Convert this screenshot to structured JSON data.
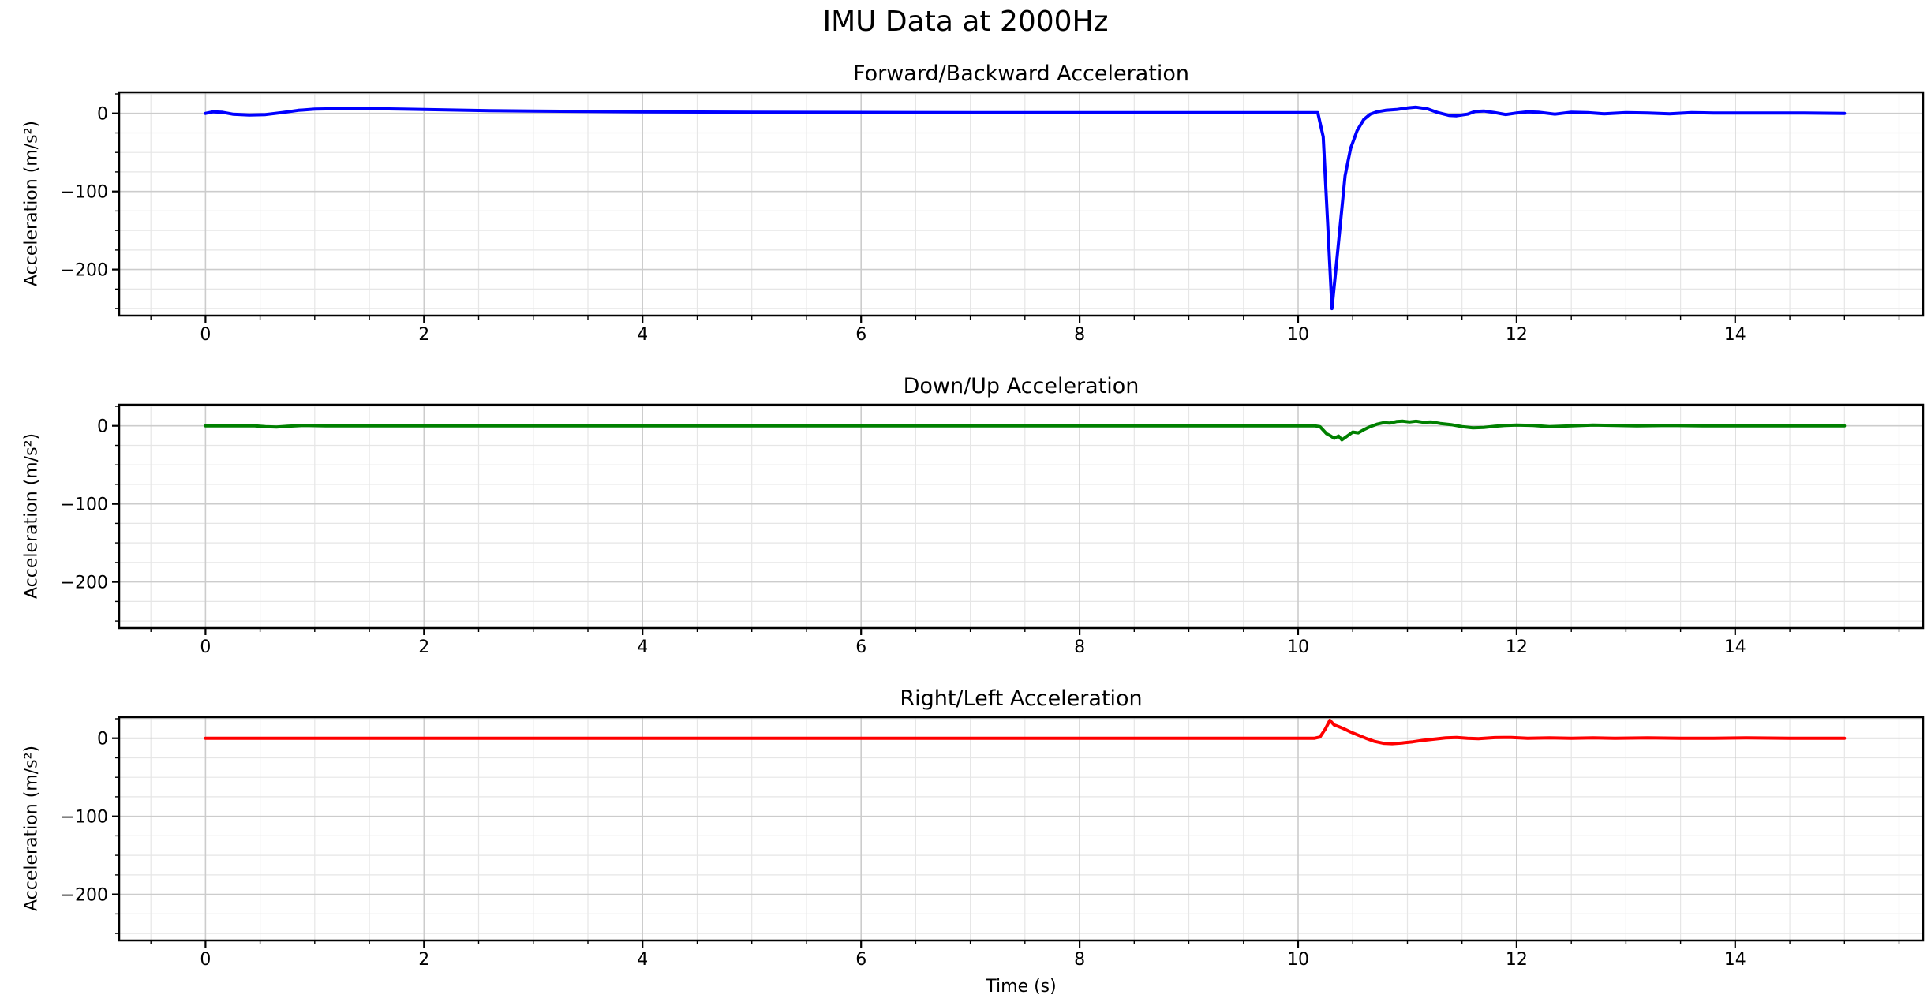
{
  "figure": {
    "suptitle": "IMU Data at 2000Hz",
    "background_color": "#ffffff",
    "text_color": "#000000",
    "grid_major_color": "#cccccc",
    "grid_minor_color": "#e6e6e6",
    "spine_color": "#000000"
  },
  "chart_data": [
    {
      "type": "line",
      "title": "Forward/Backward Acceleration",
      "xlabel": "",
      "ylabel": "Acceleration (m/s²)",
      "line_color": "#0000ff",
      "line_width": 4,
      "xlim": [
        -0.79,
        15.72
      ],
      "ylim": [
        -259,
        27
      ],
      "xticks": [
        0,
        2,
        4,
        6,
        8,
        10,
        12,
        14
      ],
      "xtick_labels": [
        "0",
        "2",
        "4",
        "6",
        "8",
        "10",
        "12",
        "14"
      ],
      "yticks": [
        0,
        -100,
        -200
      ],
      "ytick_labels": [
        "0",
        "−100",
        "−200"
      ],
      "minor_x_step": 0.5,
      "minor_y_step": 25,
      "grid": "both",
      "x": [
        0,
        0.07,
        0.15,
        0.25,
        0.4,
        0.55,
        0.7,
        0.85,
        1.0,
        1.2,
        1.5,
        1.8,
        2.2,
        2.6,
        3.0,
        3.5,
        4.0,
        5.0,
        6.0,
        7.0,
        8.0,
        9.0,
        10.0,
        10.18,
        10.23,
        10.27,
        10.31,
        10.36,
        10.43,
        10.48,
        10.54,
        10.6,
        10.66,
        10.72,
        10.8,
        10.9,
        11.0,
        11.08,
        11.18,
        11.28,
        11.38,
        11.45,
        11.55,
        11.62,
        11.7,
        11.8,
        11.9,
        12.0,
        12.1,
        12.2,
        12.35,
        12.5,
        12.65,
        12.8,
        13.0,
        13.2,
        13.4,
        13.6,
        13.8,
        14.0,
        14.3,
        14.6,
        15.0
      ],
      "y": [
        0,
        2,
        1.5,
        -1,
        -2,
        -1.5,
        1,
        4,
        5.5,
        6,
        6.2,
        5.5,
        4.5,
        3.5,
        3,
        2.5,
        2,
        1.5,
        1.2,
        1,
        1,
        1,
        1,
        1,
        -30,
        -140,
        -250,
        -180,
        -80,
        -45,
        -22,
        -8,
        -1,
        2,
        4,
        5,
        7,
        8,
        6,
        1,
        -2.5,
        -3,
        -1,
        2.5,
        3,
        1,
        -1.5,
        0.5,
        2,
        1.5,
        -1,
        1.5,
        1,
        -0.5,
        1,
        0.5,
        -0.5,
        1,
        0.5,
        0.5,
        0.5,
        0.5,
        0
      ]
    },
    {
      "type": "line",
      "title": "Down/Up Acceleration",
      "xlabel": "",
      "ylabel": "Acceleration (m/s²)",
      "line_color": "#008000",
      "line_width": 4,
      "xlim": [
        -0.79,
        15.72
      ],
      "ylim": [
        -259,
        27
      ],
      "xticks": [
        0,
        2,
        4,
        6,
        8,
        10,
        12,
        14
      ],
      "xtick_labels": [
        "0",
        "2",
        "4",
        "6",
        "8",
        "10",
        "12",
        "14"
      ],
      "yticks": [
        0,
        -100,
        -200
      ],
      "ytick_labels": [
        "0",
        "−100",
        "−200"
      ],
      "minor_x_step": 0.5,
      "minor_y_step": 25,
      "grid": "both",
      "x": [
        0,
        0.45,
        0.55,
        0.65,
        0.75,
        0.9,
        1.1,
        2.0,
        3.0,
        4.0,
        5.0,
        6.0,
        7.0,
        8.0,
        9.0,
        10.0,
        10.15,
        10.2,
        10.26,
        10.3,
        10.33,
        10.37,
        10.4,
        10.44,
        10.5,
        10.55,
        10.6,
        10.66,
        10.72,
        10.78,
        10.84,
        10.9,
        10.96,
        11.02,
        11.08,
        11.15,
        11.22,
        11.3,
        11.4,
        11.5,
        11.6,
        11.7,
        11.8,
        11.9,
        12.0,
        12.15,
        12.3,
        12.5,
        12.7,
        12.9,
        13.1,
        13.4,
        13.7,
        14.0,
        14.5,
        15.0
      ],
      "y": [
        0,
        0,
        -1,
        -1.5,
        -0.5,
        0.5,
        0,
        0,
        0,
        0,
        0,
        0,
        0,
        0,
        0,
        0,
        0,
        -1,
        -10,
        -13,
        -16,
        -13,
        -18,
        -14,
        -8,
        -9,
        -5,
        -1,
        2,
        4,
        3.5,
        5.5,
        6,
        5,
        6,
        4.5,
        5,
        3,
        1.5,
        -1,
        -2.5,
        -2,
        -0.5,
        0.5,
        1,
        0.5,
        -1,
        0,
        1,
        0.5,
        0,
        0.5,
        0,
        0,
        0,
        0
      ]
    },
    {
      "type": "line",
      "title": "Right/Left Acceleration",
      "xlabel": "Time (s)",
      "ylabel": "Acceleration (m/s²)",
      "line_color": "#ff0000",
      "line_width": 4,
      "xlim": [
        -0.79,
        15.72
      ],
      "ylim": [
        -259,
        27
      ],
      "xticks": [
        0,
        2,
        4,
        6,
        8,
        10,
        12,
        14
      ],
      "xtick_labels": [
        "0",
        "2",
        "4",
        "6",
        "8",
        "10",
        "12",
        "14"
      ],
      "yticks": [
        0,
        -100,
        -200
      ],
      "ytick_labels": [
        "0",
        "−100",
        "−200"
      ],
      "minor_x_step": 0.5,
      "minor_y_step": 25,
      "grid": "both",
      "x": [
        0,
        1,
        2,
        3,
        4,
        5,
        6,
        7,
        8,
        9,
        10,
        10.15,
        10.2,
        10.25,
        10.29,
        10.33,
        10.37,
        10.42,
        10.48,
        10.55,
        10.62,
        10.7,
        10.78,
        10.86,
        10.95,
        11.05,
        11.15,
        11.25,
        11.35,
        11.45,
        11.55,
        11.65,
        11.8,
        11.95,
        12.1,
        12.3,
        12.5,
        12.7,
        12.9,
        13.2,
        13.5,
        13.8,
        14.1,
        14.5,
        15.0
      ],
      "y": [
        0,
        0,
        0,
        0,
        0,
        0,
        0,
        0,
        0,
        0,
        0,
        0,
        1.5,
        12,
        23,
        17,
        15,
        12,
        8,
        4,
        0,
        -4,
        -6.5,
        -7,
        -6,
        -4.5,
        -2.5,
        -1,
        0.5,
        1,
        0,
        -0.5,
        0.8,
        1,
        0,
        0.5,
        0,
        0.5,
        0,
        0.5,
        0,
        0,
        0.5,
        0,
        0
      ]
    }
  ]
}
